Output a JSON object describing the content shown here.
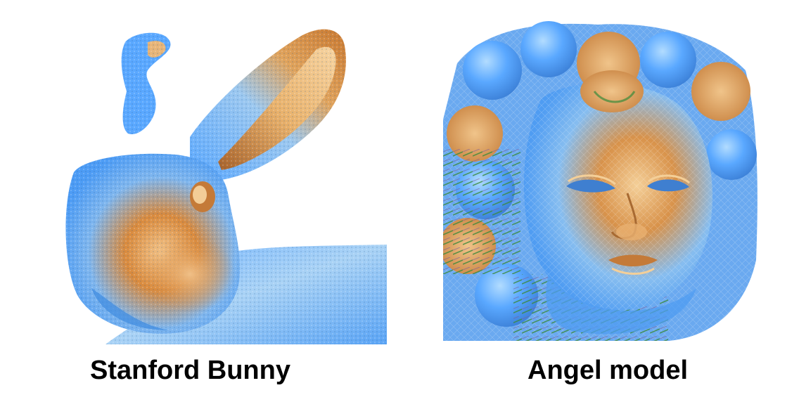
{
  "figures": [
    {
      "id": "bunny",
      "caption": "Stanford Bunny",
      "colors": {
        "base_blue": "#5aa8ff",
        "light_blue": "#aad6ff",
        "orange": "#d98a3d",
        "light_orange": "#f2c48a",
        "dark_orange": "#a8622a"
      },
      "depicts": "rabbit-head-scan"
    },
    {
      "id": "angel",
      "caption": "Angel model",
      "colors": {
        "base_blue": "#5aa8ff",
        "light_blue": "#b2dcff",
        "orange": "#d8924a",
        "light_orange": "#f4cf98",
        "green": "#3a8a3a",
        "purple": "#7a5a9a"
      },
      "depicts": "cherub-head-scan"
    }
  ]
}
